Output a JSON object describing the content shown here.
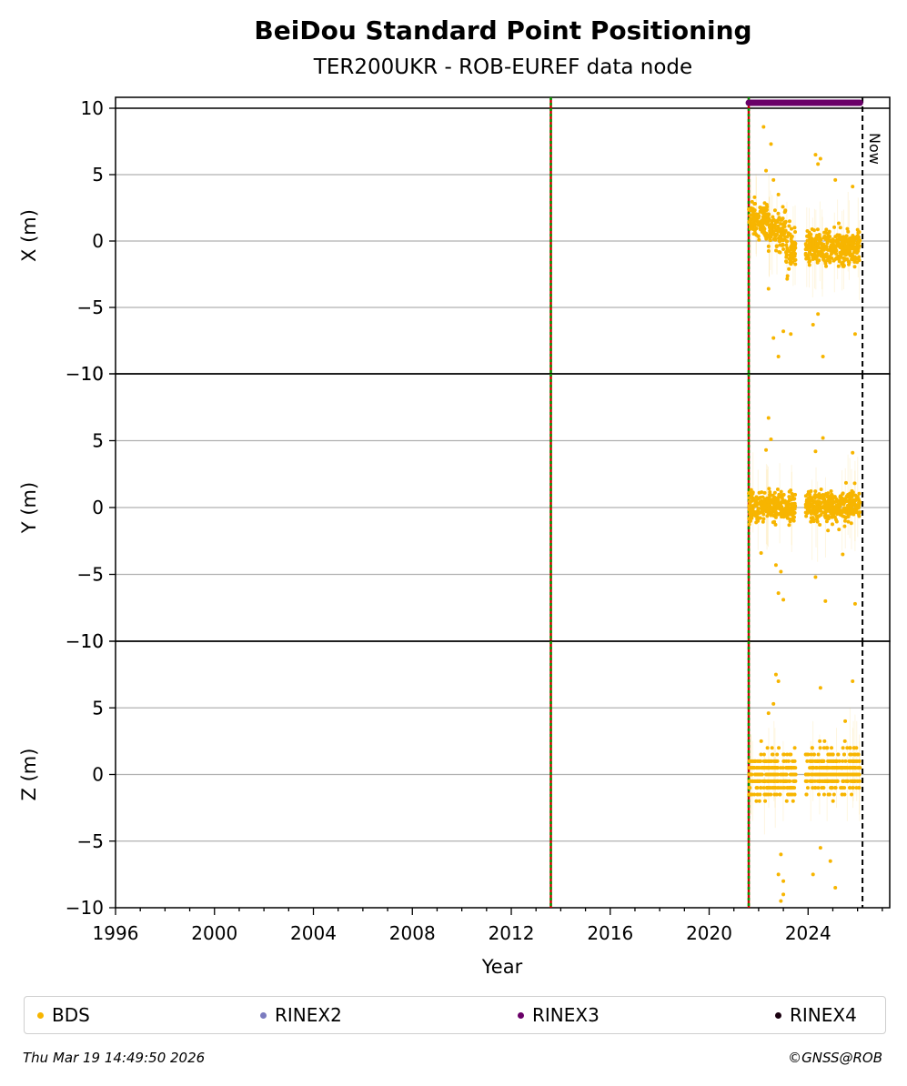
{
  "chart_data": {
    "type": "scatter",
    "title": "BeiDou Standard Point Positioning",
    "subtitle": "TER200UKR - ROB-EUREF data node",
    "xlabel": "Year",
    "xlim": [
      1996,
      2027.3
    ],
    "x_ticks": [
      "1996",
      "2000",
      "2004",
      "2008",
      "2012",
      "2016",
      "2020",
      "2024"
    ],
    "grid": true,
    "now_label": "Now",
    "now_year": 2026.2,
    "event_lines": [
      2013.6,
      2021.6
    ],
    "panels": [
      {
        "name": "X",
        "ylabel": "X (m)",
        "ylim": [
          -10,
          10
        ],
        "y_ticks": [
          "−10",
          "−5",
          "0",
          "5",
          "10"
        ],
        "y_tick_values": [
          -10,
          -5,
          0,
          5,
          10
        ],
        "segments": [
          {
            "x_start": 2021.6,
            "x_end": 2022.4,
            "center": 1.6,
            "spread": 1.3
          },
          {
            "x_start": 2022.4,
            "x_end": 2023.1,
            "center": 0.8,
            "spread": 1.4
          },
          {
            "x_start": 2023.1,
            "x_end": 2023.5,
            "center": -0.5,
            "spread": 1.8
          },
          {
            "x_start": 2023.9,
            "x_end": 2026.1,
            "center": -0.5,
            "spread": 1.2
          }
        ],
        "outliers": [
          [
            2022.2,
            8.6
          ],
          [
            2022.5,
            7.3
          ],
          [
            2022.3,
            5.3
          ],
          [
            2022.6,
            4.6
          ],
          [
            2022.8,
            3.5
          ],
          [
            2024.3,
            6.5
          ],
          [
            2024.5,
            6.2
          ],
          [
            2024.4,
            5.8
          ],
          [
            2022.4,
            -3.6
          ],
          [
            2022.6,
            -7.3
          ],
          [
            2022.8,
            -8.7
          ],
          [
            2023.0,
            -6.8
          ],
          [
            2023.3,
            -7.0
          ],
          [
            2024.4,
            -5.5
          ],
          [
            2024.6,
            -8.7
          ],
          [
            2024.2,
            -6.3
          ],
          [
            2025.9,
            -7.0
          ],
          [
            2025.8,
            4.1
          ],
          [
            2025.1,
            4.6
          ]
        ]
      },
      {
        "name": "Y",
        "ylabel": "Y (m)",
        "ylim": [
          -10,
          10
        ],
        "y_ticks": [
          "−10",
          "−5",
          "0",
          "5",
          "10"
        ],
        "y_tick_values": [
          -10,
          -5,
          0,
          5,
          10
        ],
        "segments": [
          {
            "x_start": 2021.6,
            "x_end": 2023.5,
            "center": 0.1,
            "spread": 1.1
          },
          {
            "x_start": 2023.9,
            "x_end": 2026.1,
            "center": 0.1,
            "spread": 1.1
          }
        ],
        "outliers": [
          [
            2022.4,
            6.7
          ],
          [
            2022.5,
            5.1
          ],
          [
            2022.3,
            4.3
          ],
          [
            2024.6,
            5.2
          ],
          [
            2024.3,
            4.2
          ],
          [
            2025.8,
            4.1
          ],
          [
            2022.7,
            -4.3
          ],
          [
            2022.9,
            -4.8
          ],
          [
            2023.0,
            -6.9
          ],
          [
            2022.8,
            -6.4
          ],
          [
            2024.3,
            -5.2
          ],
          [
            2024.7,
            -7.0
          ],
          [
            2025.9,
            -7.2
          ],
          [
            2022.1,
            -3.4
          ],
          [
            2025.4,
            -3.5
          ]
        ]
      },
      {
        "name": "Z",
        "ylabel": "Z (m)",
        "ylim": [
          -10,
          10
        ],
        "y_ticks": [
          "−10",
          "−5",
          "0",
          "5",
          "10"
        ],
        "y_tick_values": [
          -10,
          -5,
          0,
          5,
          10
        ],
        "segments": [
          {
            "x_start": 2021.6,
            "x_end": 2023.5,
            "center": 0.0,
            "spread": 1.6
          },
          {
            "x_start": 2023.9,
            "x_end": 2026.1,
            "center": 0.3,
            "spread": 1.6
          }
        ],
        "outliers": [
          [
            2022.7,
            7.5
          ],
          [
            2022.8,
            7.0
          ],
          [
            2022.6,
            5.3
          ],
          [
            2022.4,
            4.6
          ],
          [
            2024.5,
            6.5
          ],
          [
            2025.8,
            7.0
          ],
          [
            2025.5,
            4.0
          ],
          [
            2022.9,
            -6.0
          ],
          [
            2022.8,
            -7.5
          ],
          [
            2023.0,
            -8.0
          ],
          [
            2022.9,
            -9.5
          ],
          [
            2023.0,
            -9.0
          ],
          [
            2024.2,
            -7.5
          ],
          [
            2024.5,
            -5.5
          ],
          [
            2025.1,
            -8.5
          ],
          [
            2024.9,
            -6.5
          ]
        ]
      }
    ],
    "rinex3_coverage": {
      "x_start": 2021.6,
      "x_end": 2026.1,
      "y": 10.4
    },
    "legend": [
      {
        "label": "BDS",
        "color": "#f7b500"
      },
      {
        "label": "RINEX2",
        "color": "#7b7bbf"
      },
      {
        "label": "RINEX3",
        "color": "#6a0068"
      },
      {
        "label": "RINEX4",
        "color": "#1a0010"
      }
    ]
  },
  "footer": {
    "timestamp": "Thu Mar 19 14:49:50 2026",
    "credit": "©GNSS@ROB"
  }
}
